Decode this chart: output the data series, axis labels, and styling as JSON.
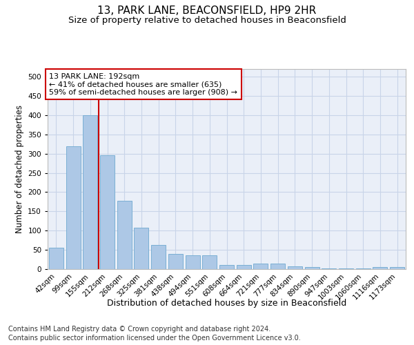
{
  "title": "13, PARK LANE, BEACONSFIELD, HP9 2HR",
  "subtitle": "Size of property relative to detached houses in Beaconsfield",
  "xlabel": "Distribution of detached houses by size in Beaconsfield",
  "ylabel": "Number of detached properties",
  "categories": [
    "42sqm",
    "99sqm",
    "155sqm",
    "212sqm",
    "268sqm",
    "325sqm",
    "381sqm",
    "438sqm",
    "494sqm",
    "551sqm",
    "608sqm",
    "664sqm",
    "721sqm",
    "777sqm",
    "834sqm",
    "890sqm",
    "947sqm",
    "1003sqm",
    "1060sqm",
    "1116sqm",
    "1173sqm"
  ],
  "values": [
    55,
    320,
    400,
    295,
    178,
    107,
    62,
    40,
    35,
    35,
    10,
    10,
    15,
    15,
    8,
    5,
    2,
    2,
    2,
    5,
    5
  ],
  "bar_color": "#adc8e6",
  "bar_edge_color": "#7aafd4",
  "grid_color": "#c8d4e8",
  "bg_color": "#eaeff8",
  "vline_color": "#cc0000",
  "annotation_text": "13 PARK LANE: 192sqm\n← 41% of detached houses are smaller (635)\n59% of semi-detached houses are larger (908) →",
  "annotation_box_color": "#cc0000",
  "ylim": [
    0,
    520
  ],
  "yticks": [
    0,
    50,
    100,
    150,
    200,
    250,
    300,
    350,
    400,
    450,
    500
  ],
  "footer_line1": "Contains HM Land Registry data © Crown copyright and database right 2024.",
  "footer_line2": "Contains public sector information licensed under the Open Government Licence v3.0.",
  "title_fontsize": 11,
  "subtitle_fontsize": 9.5,
  "xlabel_fontsize": 9,
  "ylabel_fontsize": 8.5,
  "tick_fontsize": 7.5,
  "annotation_fontsize": 8,
  "footer_fontsize": 7
}
